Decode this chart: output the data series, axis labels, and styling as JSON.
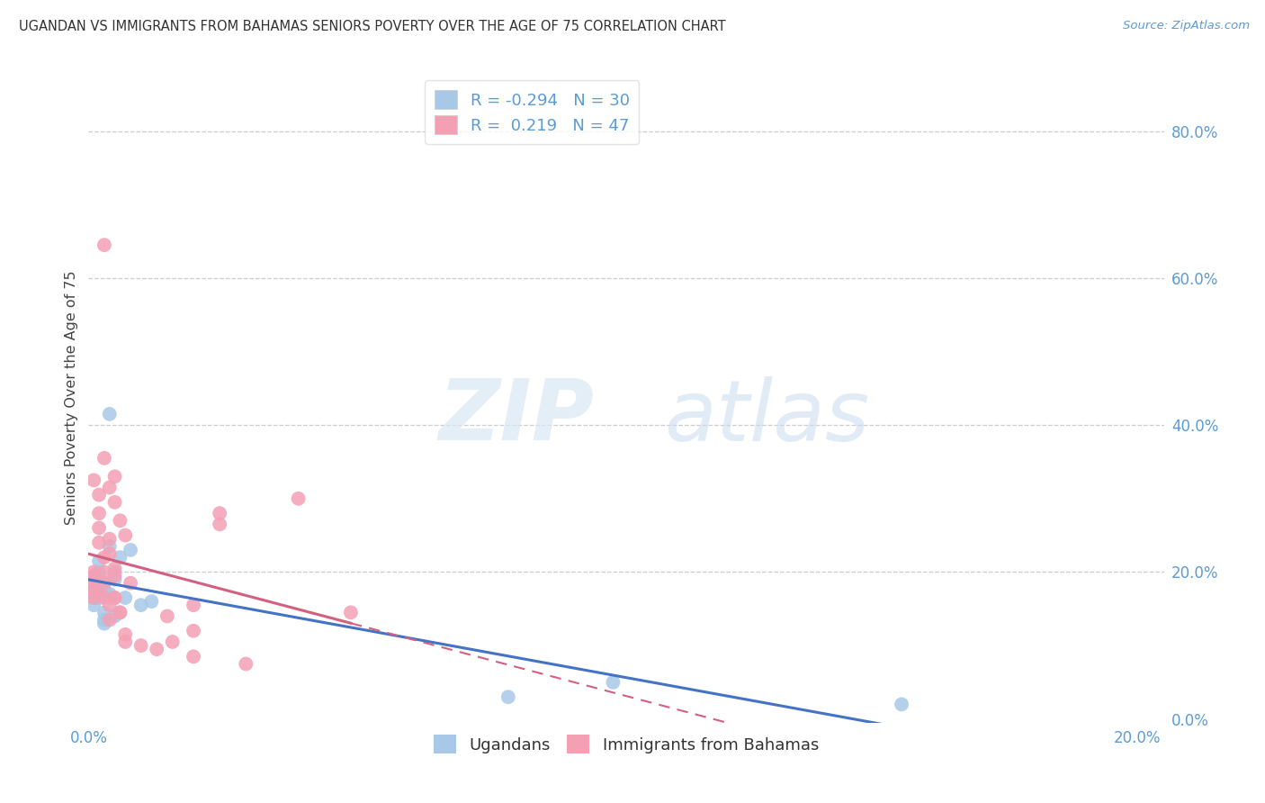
{
  "title": "UGANDAN VS IMMIGRANTS FROM BAHAMAS SENIORS POVERTY OVER THE AGE OF 75 CORRELATION CHART",
  "source": "Source: ZipAtlas.com",
  "ylabel": "Seniors Poverty Over the Age of 75",
  "legend_labels": [
    "Ugandans",
    "Immigrants from Bahamas"
  ],
  "r_ugandan": -0.294,
  "n_ugandan": 30,
  "r_bahamas": 0.219,
  "n_bahamas": 47,
  "blue_color": "#a8c8e8",
  "pink_color": "#f4a0b4",
  "blue_line_color": "#4472c4",
  "pink_line_color": "#d46080",
  "ugandan_x": [
    0.001,
    0.001,
    0.001,
    0.001,
    0.001,
    0.002,
    0.002,
    0.002,
    0.002,
    0.002,
    0.003,
    0.003,
    0.003,
    0.003,
    0.004,
    0.004,
    0.004,
    0.005,
    0.005,
    0.006,
    0.007,
    0.008,
    0.01,
    0.012,
    0.004,
    0.003,
    0.005,
    0.1,
    0.155,
    0.08
  ],
  "ugandan_y": [
    0.175,
    0.165,
    0.185,
    0.155,
    0.195,
    0.18,
    0.17,
    0.165,
    0.2,
    0.215,
    0.145,
    0.185,
    0.175,
    0.135,
    0.165,
    0.235,
    0.17,
    0.2,
    0.19,
    0.22,
    0.165,
    0.23,
    0.155,
    0.16,
    0.415,
    0.13,
    0.14,
    0.05,
    0.02,
    0.03
  ],
  "bahamas_x": [
    0.001,
    0.001,
    0.001,
    0.001,
    0.001,
    0.001,
    0.002,
    0.002,
    0.002,
    0.002,
    0.002,
    0.003,
    0.003,
    0.003,
    0.003,
    0.003,
    0.004,
    0.004,
    0.004,
    0.004,
    0.005,
    0.005,
    0.005,
    0.005,
    0.006,
    0.006,
    0.007,
    0.007,
    0.003,
    0.004,
    0.005,
    0.006,
    0.007,
    0.008,
    0.01,
    0.013,
    0.016,
    0.02,
    0.025,
    0.02,
    0.015,
    0.03,
    0.025,
    0.04,
    0.05,
    0.02,
    0.005
  ],
  "bahamas_y": [
    0.185,
    0.175,
    0.165,
    0.2,
    0.195,
    0.325,
    0.17,
    0.305,
    0.28,
    0.26,
    0.24,
    0.22,
    0.2,
    0.185,
    0.165,
    0.645,
    0.155,
    0.135,
    0.245,
    0.225,
    0.205,
    0.195,
    0.295,
    0.165,
    0.145,
    0.27,
    0.105,
    0.25,
    0.355,
    0.315,
    0.165,
    0.145,
    0.115,
    0.185,
    0.1,
    0.095,
    0.105,
    0.085,
    0.265,
    0.155,
    0.14,
    0.075,
    0.28,
    0.3,
    0.145,
    0.12,
    0.33
  ],
  "xlim": [
    0.0,
    0.205
  ],
  "ylim": [
    -0.005,
    0.88
  ],
  "xtick_vals": [
    0.0,
    0.2
  ],
  "ytick_vals": [
    0.0,
    0.2,
    0.4,
    0.6,
    0.8
  ],
  "grid_yticks": [
    0.2,
    0.4,
    0.6,
    0.8
  ],
  "watermark_zip": "ZIP",
  "watermark_atlas": "atlas",
  "background_color": "#ffffff"
}
